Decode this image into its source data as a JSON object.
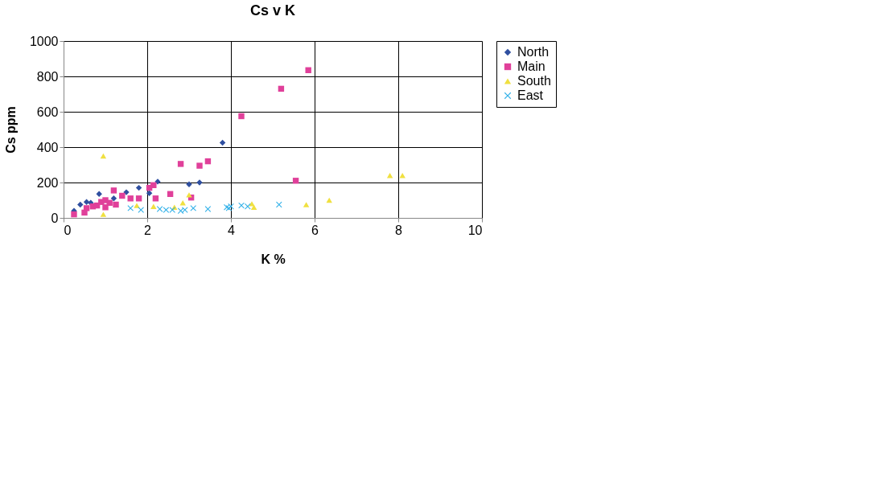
{
  "chart_data": {
    "type": "scatter",
    "title": "Cs v K",
    "xlabel": "K %",
    "ylabel": "Cs ppm",
    "xlim": [
      0,
      10
    ],
    "xticks": [
      0,
      2,
      4,
      6,
      8,
      10
    ],
    "ylim": [
      0,
      1000
    ],
    "yticks": [
      0,
      200,
      400,
      600,
      800,
      1000
    ],
    "grid": true,
    "legend": "right",
    "series": [
      {
        "name": "North",
        "color": "#2f4fa0",
        "marker": "diamond",
        "x": [
          0.25,
          0.4,
          0.55,
          0.65,
          0.7,
          0.85,
          0.9,
          1.2,
          1.5,
          1.8,
          2.05,
          2.1,
          2.25,
          3.0,
          3.25,
          3.8
        ],
        "values": [
          40,
          75,
          90,
          85,
          null,
          135,
          null,
          110,
          145,
          170,
          140,
          null,
          205,
          190,
          200,
          425
        ]
      },
      {
        "name": "Main",
        "color": "#e0409a",
        "marker": "square",
        "x": [
          0.25,
          0.5,
          0.55,
          0.7,
          0.8,
          0.9,
          1.0,
          1.0,
          1.1,
          1.2,
          1.25,
          1.4,
          1.6,
          1.8,
          2.05,
          2.15,
          2.2,
          2.55,
          2.8,
          3.05,
          3.25,
          3.45,
          4.25,
          5.2,
          5.55,
          5.85
        ],
        "values": [
          20,
          30,
          55,
          65,
          70,
          90,
          100,
          60,
          85,
          155,
          75,
          125,
          110,
          110,
          170,
          185,
          110,
          135,
          305,
          115,
          295,
          320,
          575,
          730,
          210,
          835
        ]
      },
      {
        "name": "South",
        "color": "#f0e040",
        "marker": "triangle",
        "x": [
          0.95,
          0.95,
          1.75,
          2.15,
          2.65,
          2.85,
          3.0,
          4.5,
          4.55,
          5.8,
          6.35,
          7.8,
          8.1
        ],
        "values": [
          350,
          20,
          70,
          65,
          60,
          85,
          130,
          80,
          60,
          75,
          100,
          240,
          240
        ]
      },
      {
        "name": "East",
        "color": "#30b0e8",
        "marker": "cross",
        "x": [
          1.6,
          1.85,
          2.3,
          2.45,
          2.6,
          2.8,
          2.9,
          3.1,
          3.45,
          3.9,
          3.95,
          4.0,
          4.25,
          4.4,
          5.15
        ],
        "values": [
          55,
          45,
          50,
          45,
          45,
          40,
          45,
          55,
          50,
          60,
          55,
          65,
          70,
          65,
          75
        ]
      }
    ]
  }
}
